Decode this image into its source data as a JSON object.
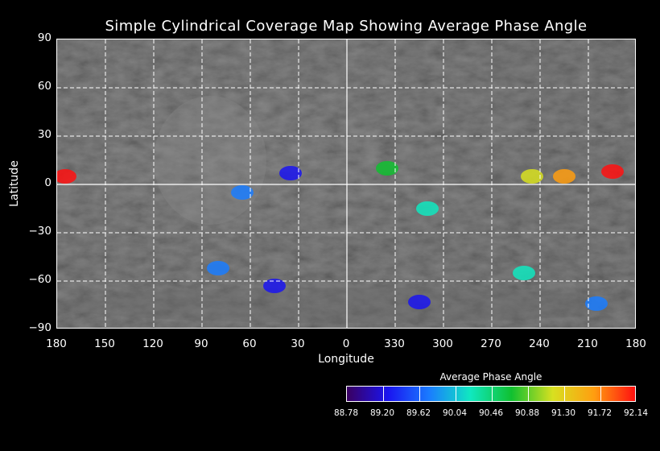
{
  "title": "Simple Cylindrical Coverage Map Showing Average Phase Angle",
  "axes": {
    "x_title": "Longitude",
    "y_title": "Latitude",
    "lat_ticks": [
      90,
      60,
      30,
      0,
      -30,
      -60,
      -90
    ],
    "lat_tick_labels": [
      "90",
      "60",
      "30",
      "0",
      "−30",
      "−60",
      "−90"
    ],
    "lon_ticks": [
      180,
      150,
      120,
      90,
      60,
      30,
      0,
      330,
      300,
      270,
      240,
      210,
      180
    ],
    "lon_tick_labels": [
      "180",
      "150",
      "120",
      "90",
      "60",
      "30",
      "0",
      "330",
      "300",
      "270",
      "240",
      "210",
      "180"
    ],
    "grid": "dashed white",
    "lat_range": [
      -90,
      90
    ]
  },
  "colorbar": {
    "title": "Average Phase Angle",
    "tick_labels": [
      "88.78",
      "89.20",
      "89.62",
      "90.04",
      "90.46",
      "90.88",
      "91.30",
      "91.72",
      "92.14"
    ],
    "range": [
      88.78,
      92.14
    ],
    "colors": [
      "#3a0060",
      "#1a14f0",
      "#1a7cff",
      "#10e8c0",
      "#10c030",
      "#d8e020",
      "#ff9e10",
      "#ff1010"
    ]
  },
  "coverage_patches": [
    {
      "lon": 175,
      "lat": 5,
      "phase": 92.0
    },
    {
      "lon": 65,
      "lat": -5,
      "phase": 89.9
    },
    {
      "lon": 35,
      "lat": 7,
      "phase": 89.6
    },
    {
      "lon": 335,
      "lat": 10,
      "phase": 90.7
    },
    {
      "lon": 310,
      "lat": -15,
      "phase": 90.3
    },
    {
      "lon": 245,
      "lat": 5,
      "phase": 91.1
    },
    {
      "lon": 225,
      "lat": 5,
      "phase": 91.5
    },
    {
      "lon": 195,
      "lat": 8,
      "phase": 92.0
    },
    {
      "lon": 80,
      "lat": -52,
      "phase": 89.7
    },
    {
      "lon": 45,
      "lat": -63,
      "phase": 89.3
    },
    {
      "lon": 315,
      "lat": -73,
      "phase": 89.2
    },
    {
      "lon": 205,
      "lat": -74,
      "phase": 89.8
    },
    {
      "lon": 250,
      "lat": -55,
      "phase": 90.2
    }
  ]
}
